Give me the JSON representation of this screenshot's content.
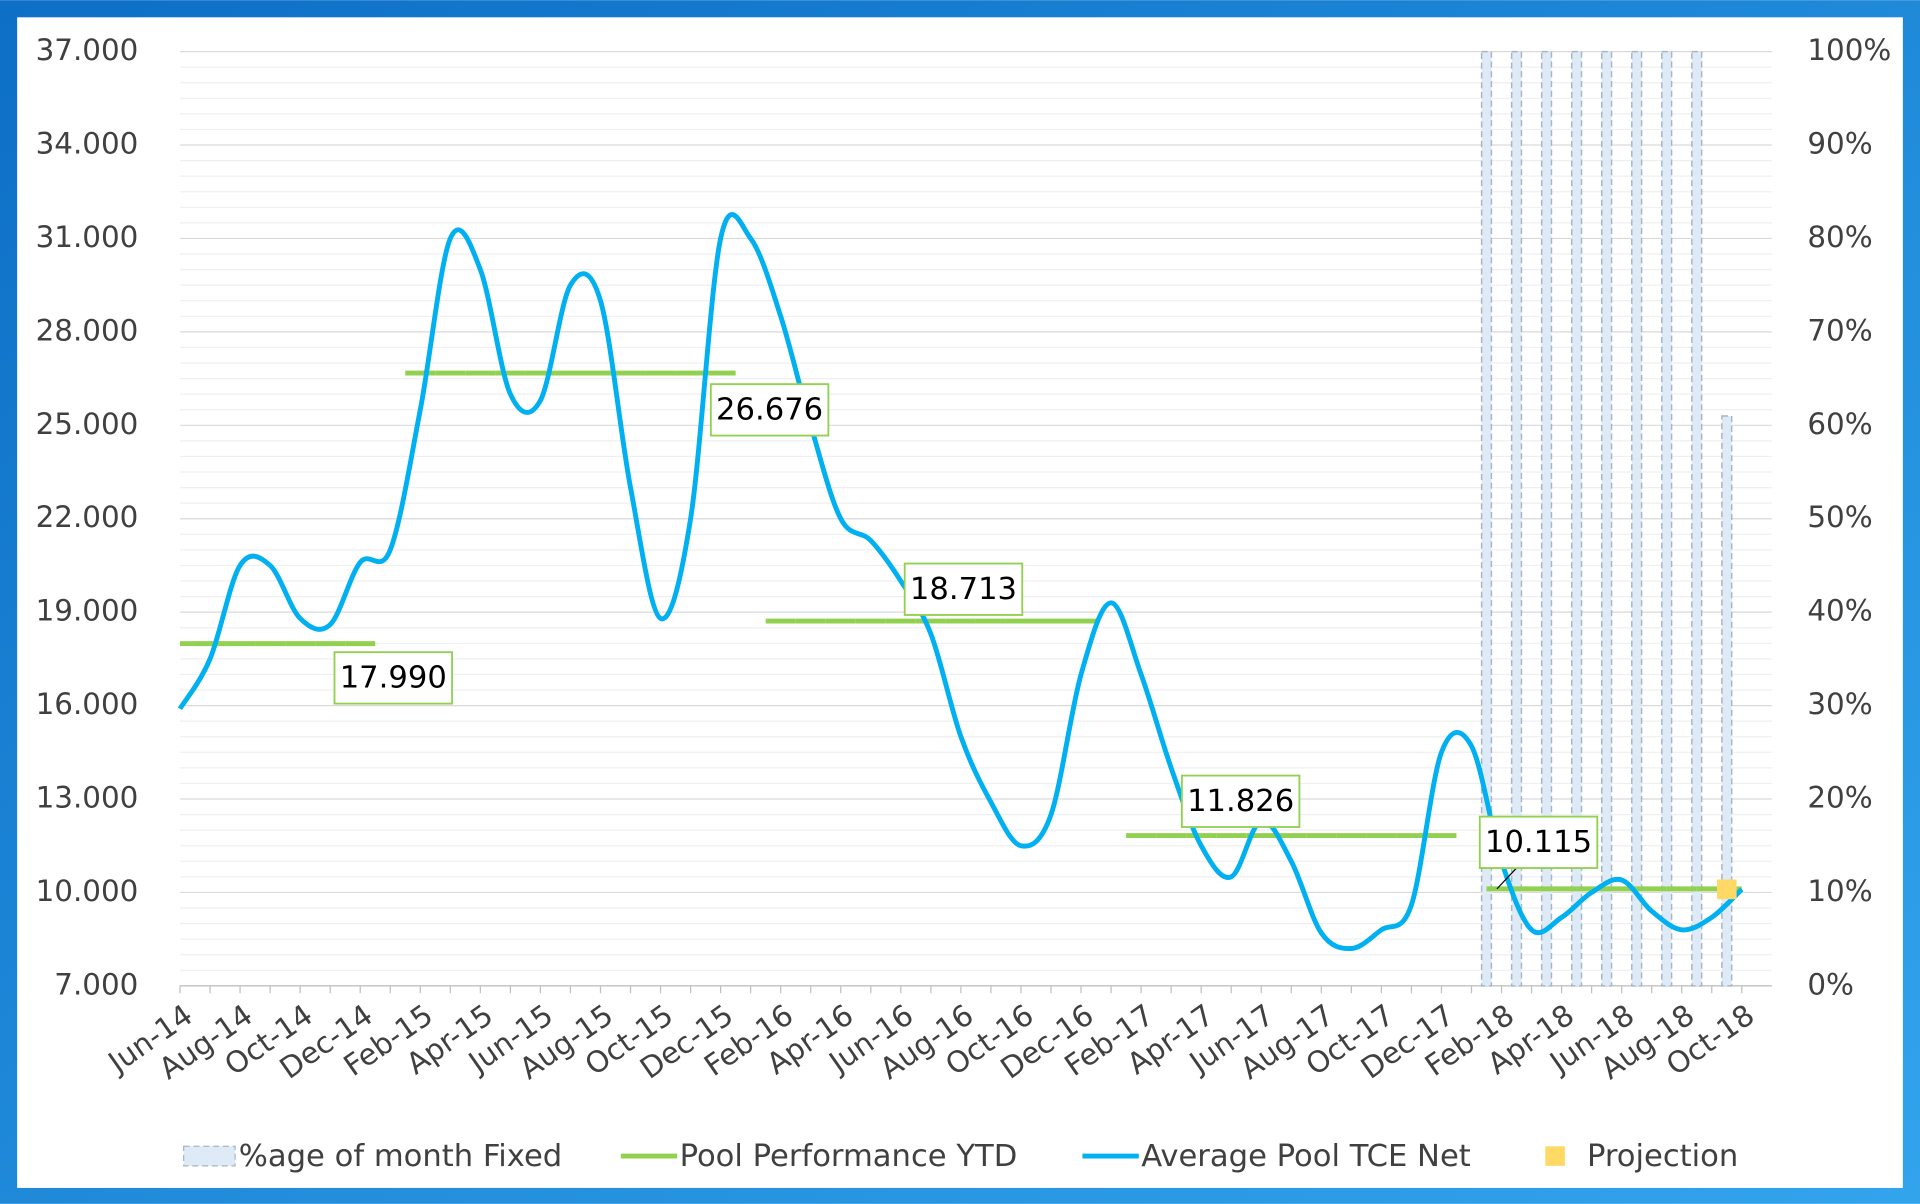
{
  "chart_data": {
    "type": "combo",
    "categories": [
      "Jun-14",
      null,
      "Aug-14",
      null,
      "Oct-14",
      null,
      "Dec-14",
      null,
      "Feb-15",
      null,
      "Apr-15",
      null,
      "Jun-15",
      null,
      "Aug-15",
      null,
      "Oct-15",
      null,
      "Dec-15",
      null,
      "Feb-16",
      null,
      "Apr-16",
      null,
      "Jun-16",
      null,
      "Aug-16",
      null,
      "Oct-16",
      null,
      "Dec-16",
      null,
      "Feb-17",
      null,
      "Apr-17",
      null,
      "Jun-17",
      null,
      "Aug-17",
      null,
      "Oct-17",
      null,
      "Dec-17",
      null,
      "Feb-18",
      null,
      "Apr-18",
      null,
      "Jun-18",
      null,
      "Aug-18",
      null,
      "Oct-18"
    ],
    "series": [
      {
        "name": "%age of month Fixed",
        "kind": "bar",
        "axis": "y2",
        "color": "#deebf7",
        "values": [
          null,
          null,
          null,
          null,
          null,
          null,
          null,
          null,
          null,
          null,
          null,
          null,
          null,
          null,
          null,
          null,
          null,
          null,
          null,
          null,
          null,
          null,
          null,
          null,
          null,
          null,
          null,
          null,
          null,
          null,
          null,
          null,
          null,
          null,
          null,
          null,
          null,
          null,
          null,
          null,
          null,
          null,
          null,
          null,
          100,
          100,
          100,
          100,
          100,
          100,
          100,
          100,
          61
        ]
      },
      {
        "name": "Pool Performance YTD",
        "kind": "step",
        "color": "#92d050",
        "values": [
          17.99,
          17.99,
          17.99,
          17.99,
          17.99,
          17.99,
          17.99,
          null,
          26.676,
          26.676,
          26.676,
          26.676,
          26.676,
          26.676,
          26.676,
          26.676,
          26.676,
          26.676,
          26.676,
          null,
          18.713,
          18.713,
          18.713,
          18.713,
          18.713,
          18.713,
          18.713,
          18.713,
          18.713,
          18.713,
          18.713,
          null,
          11.826,
          11.826,
          11.826,
          11.826,
          11.826,
          11.826,
          11.826,
          11.826,
          11.826,
          11.826,
          11.826,
          null,
          10.115,
          10.115,
          10.115,
          10.115,
          10.115,
          10.115,
          10.115,
          10.115,
          10.115
        ],
        "value_labels": [
          null,
          null,
          null,
          null,
          null,
          null,
          "17.990",
          null,
          null,
          null,
          null,
          null,
          null,
          null,
          null,
          null,
          null,
          null,
          "26.676",
          null,
          null,
          null,
          null,
          null,
          null,
          null,
          null,
          null,
          null,
          null,
          "18.713",
          null,
          null,
          null,
          null,
          null,
          null,
          null,
          null,
          null,
          null,
          null,
          "11.826",
          null,
          null,
          null,
          null,
          null,
          null,
          null,
          null,
          null,
          "10.115"
        ]
      },
      {
        "name": "Average Pool TCE Net",
        "kind": "line",
        "color": "#00b0f0",
        "values": [
          15.9,
          17.5,
          20.5,
          20.5,
          18.8,
          18.6,
          20.6,
          21.0,
          25.5,
          31.0,
          30.0,
          26.0,
          25.8,
          29.5,
          29.0,
          23.0,
          18.8,
          22.0,
          31.0,
          31.0,
          28.5,
          25.0,
          22.0,
          21.3,
          20.0,
          18.3,
          15.0,
          12.9,
          11.5,
          12.5,
          17.0,
          19.3,
          17.0,
          14.0,
          11.5,
          10.5,
          12.3,
          11.0,
          8.7,
          8.2,
          8.8,
          9.6,
          14.5,
          14.7,
          11.0,
          8.8,
          9.2,
          10.0,
          10.4,
          9.4,
          8.8,
          9.2,
          10.1
        ]
      },
      {
        "name": "Projection",
        "kind": "point",
        "color": "#ffd966",
        "values": [
          null,
          null,
          null,
          null,
          null,
          null,
          null,
          null,
          null,
          null,
          null,
          null,
          null,
          null,
          null,
          null,
          null,
          null,
          null,
          null,
          null,
          null,
          null,
          null,
          null,
          null,
          null,
          null,
          null,
          null,
          null,
          null,
          null,
          null,
          null,
          null,
          null,
          null,
          null,
          null,
          null,
          null,
          null,
          null,
          null,
          null,
          null,
          null,
          null,
          null,
          null,
          null,
          10.1
        ]
      }
    ],
    "ylim": [
      7,
      37
    ],
    "yticks": [
      {
        "value": 7,
        "label": "7.000"
      },
      {
        "value": 10,
        "label": "10.000"
      },
      {
        "value": 13,
        "label": "13.000"
      },
      {
        "value": 16,
        "label": "16.000"
      },
      {
        "value": 19,
        "label": "19.000"
      },
      {
        "value": 22,
        "label": "22.000"
      },
      {
        "value": 25,
        "label": "25.000"
      },
      {
        "value": 28,
        "label": "28.000"
      },
      {
        "value": 31,
        "label": "31.000"
      },
      {
        "value": 34,
        "label": "34.000"
      },
      {
        "value": 37,
        "label": "37.000"
      }
    ],
    "y2lim": [
      0,
      100
    ],
    "y2ticks": [
      {
        "value": 0,
        "label": "0%"
      },
      {
        "value": 10,
        "label": "10%"
      },
      {
        "value": 20,
        "label": "20%"
      },
      {
        "value": 30,
        "label": "30%"
      },
      {
        "value": 40,
        "label": "40%"
      },
      {
        "value": 50,
        "label": "50%"
      },
      {
        "value": 60,
        "label": "60%"
      },
      {
        "value": 70,
        "label": "70%"
      },
      {
        "value": 80,
        "label": "80%"
      },
      {
        "value": 90,
        "label": "90%"
      },
      {
        "value": 100,
        "label": "100%"
      }
    ],
    "grid": true,
    "legend": "bottom"
  }
}
